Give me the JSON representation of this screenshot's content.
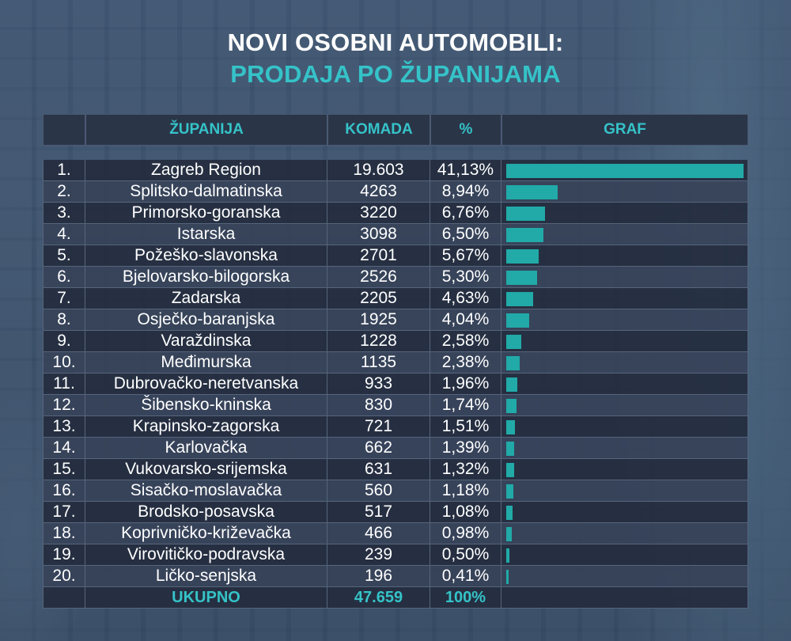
{
  "title": {
    "line1": "NOVI OSOBNI AUTOMOBILI:",
    "line2": "PRODAJA PO ŽUPANIJAMA"
  },
  "headers": {
    "region": "ŽUPANIJA",
    "qty": "KOMADA",
    "pct": "%",
    "graph": "GRAF"
  },
  "colors": {
    "accent": "#35c3c8",
    "bar": "#21aaa8",
    "row_dark": "#242c3e",
    "row_mid": "#364258"
  },
  "chart_data": {
    "type": "bar",
    "orientation": "horizontal",
    "title": "NOVI OSOBNI AUTOMOBILI: PRODAJA PO ŽUPANIJAMA",
    "xlabel": "GRAF",
    "ylabel": "ŽUPANIJA",
    "grid": false,
    "rows": [
      {
        "rank": "1.",
        "name": "Zagreb Region",
        "qty": "19.603",
        "pct_label": "41,13%",
        "pct": 41.13
      },
      {
        "rank": "2.",
        "name": "Splitsko-dalmatinska",
        "qty": "4263",
        "pct_label": "8,94%",
        "pct": 8.94
      },
      {
        "rank": "3.",
        "name": "Primorsko-goranska",
        "qty": "3220",
        "pct_label": "6,76%",
        "pct": 6.76
      },
      {
        "rank": "4.",
        "name": "Istarska",
        "qty": "3098",
        "pct_label": "6,50%",
        "pct": 6.5
      },
      {
        "rank": "5.",
        "name": "Požeško-slavonska",
        "qty": "2701",
        "pct_label": "5,67%",
        "pct": 5.67
      },
      {
        "rank": "6.",
        "name": "Bjelovarsko-bilogorska",
        "qty": "2526",
        "pct_label": "5,30%",
        "pct": 5.3
      },
      {
        "rank": "7.",
        "name": "Zadarska",
        "qty": "2205",
        "pct_label": "4,63%",
        "pct": 4.63
      },
      {
        "rank": "8.",
        "name": "Osječko-baranjska",
        "qty": "1925",
        "pct_label": "4,04%",
        "pct": 4.04
      },
      {
        "rank": "9.",
        "name": "Varaždinska",
        "qty": "1228",
        "pct_label": "2,58%",
        "pct": 2.58
      },
      {
        "rank": "10.",
        "name": "Međimurska",
        "qty": "1135",
        "pct_label": "2,38%",
        "pct": 2.38
      },
      {
        "rank": "11.",
        "name": "Dubrovačko-neretvanska",
        "qty": "933",
        "pct_label": "1,96%",
        "pct": 1.96
      },
      {
        "rank": "12.",
        "name": "Šibensko-kninska",
        "qty": "830",
        "pct_label": "1,74%",
        "pct": 1.74
      },
      {
        "rank": "13.",
        "name": "Krapinsko-zagorska",
        "qty": "721",
        "pct_label": "1,51%",
        "pct": 1.51
      },
      {
        "rank": "14.",
        "name": "Karlovačka",
        "qty": "662",
        "pct_label": "1,39%",
        "pct": 1.39
      },
      {
        "rank": "15.",
        "name": "Vukovarsko-srijemska",
        "qty": "631",
        "pct_label": "1,32%",
        "pct": 1.32
      },
      {
        "rank": "16.",
        "name": "Sisačko-moslavačka",
        "qty": "560",
        "pct_label": "1,18%",
        "pct": 1.18
      },
      {
        "rank": "17.",
        "name": "Brodsko-posavska",
        "qty": "517",
        "pct_label": "1,08%",
        "pct": 1.08
      },
      {
        "rank": "18.",
        "name": "Koprivničko-križevačka",
        "qty": "466",
        "pct_label": "0,98%",
        "pct": 0.98
      },
      {
        "rank": "19.",
        "name": "Virovitičko-podravska",
        "qty": "239",
        "pct_label": "0,50%",
        "pct": 0.5
      },
      {
        "rank": "20.",
        "name": "Ličko-senjska",
        "qty": "196",
        "pct_label": "0,41%",
        "pct": 0.41
      }
    ],
    "total": {
      "label": "UKUPNO",
      "qty": "47.659",
      "pct_label": "100%"
    }
  }
}
